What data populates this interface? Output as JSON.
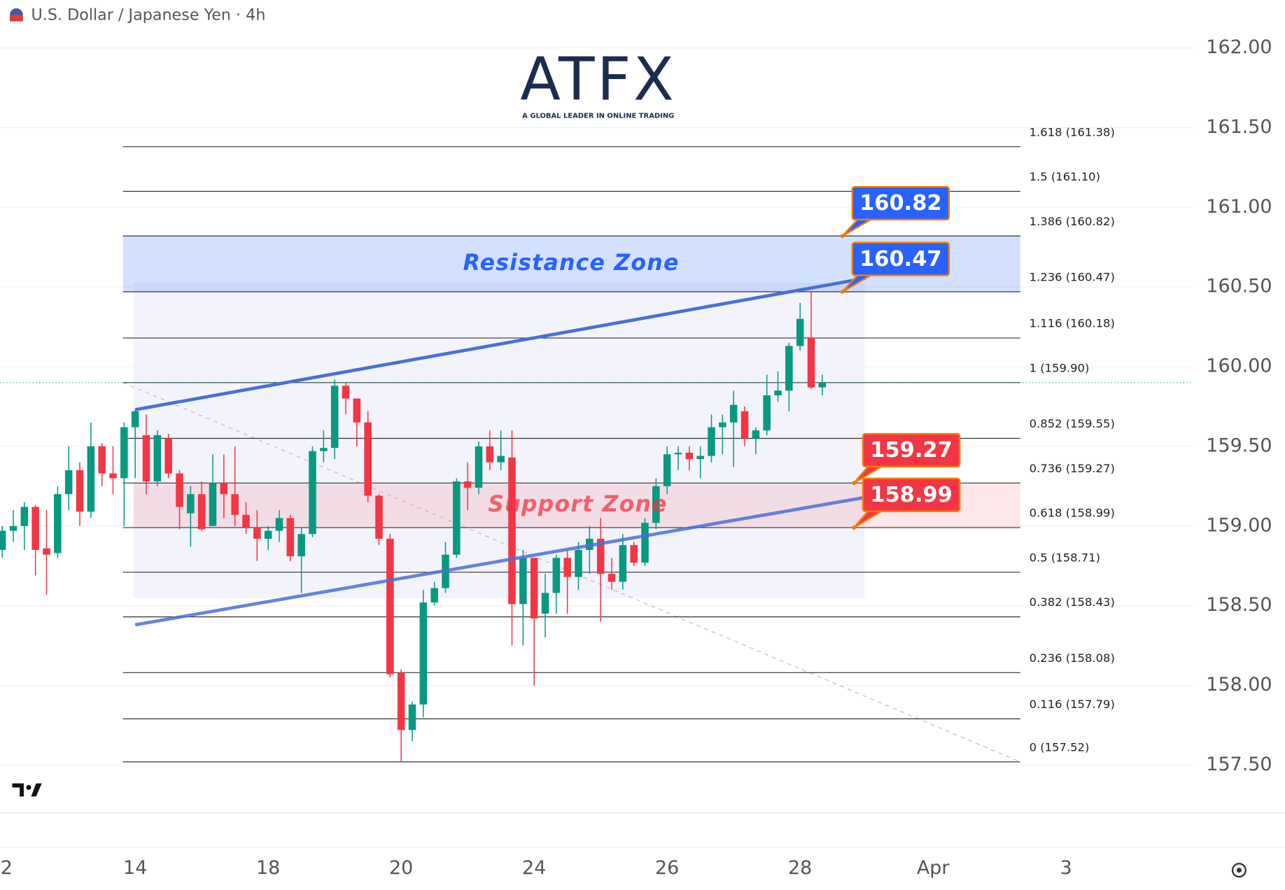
{
  "chart_data": {
    "type": "candlestick",
    "title": "U.S. Dollar / Japanese Yen",
    "interval": "4h",
    "brand": "ATFX",
    "brand_tagline": "A GLOBAL LEADER IN ONLINE TRADING",
    "up_color": "#089981",
    "down_color": "#f23645",
    "ylim": [
      157.2,
      162.3
    ],
    "yticks": [
      {
        "value": 157.5,
        "label": "157.50"
      },
      {
        "value": 158,
        "label": "158.00"
      },
      {
        "value": 158.5,
        "label": "158.50"
      },
      {
        "value": 159,
        "label": "159.00"
      },
      {
        "value": 159.5,
        "label": "159.50"
      },
      {
        "value": 160,
        "label": "160.00"
      },
      {
        "value": 160.5,
        "label": "160.50"
      },
      {
        "value": 161,
        "label": "161.00"
      },
      {
        "value": 161.5,
        "label": "161.50"
      },
      {
        "value": 162,
        "label": "162.00"
      }
    ],
    "xlim": [
      -0.2,
      107.4
    ],
    "xticks": [
      {
        "value": 0,
        "label": "2"
      },
      {
        "value": 12,
        "label": "14"
      },
      {
        "value": 24,
        "label": "18"
      },
      {
        "value": 36,
        "label": "20"
      },
      {
        "value": 48,
        "label": "24"
      },
      {
        "value": 60,
        "label": "26"
      },
      {
        "value": 72,
        "label": "28"
      },
      {
        "value": 84,
        "label": "Apr"
      },
      {
        "value": 96,
        "label": "3"
      }
    ],
    "candles": [
      [
        158.85,
        159.0,
        158.8,
        158.97
      ],
      [
        158.97,
        159.1,
        158.9,
        159.0
      ],
      [
        159.0,
        159.15,
        158.85,
        159.12
      ],
      [
        159.12,
        159.13,
        158.69,
        158.85
      ],
      [
        158.86,
        159.1,
        158.57,
        158.82
      ],
      [
        158.83,
        159.25,
        158.8,
        159.2
      ],
      [
        159.2,
        159.5,
        159.1,
        159.35
      ],
      [
        159.35,
        159.4,
        159.0,
        159.09
      ],
      [
        159.09,
        159.65,
        159.05,
        159.5
      ],
      [
        159.5,
        159.52,
        159.25,
        159.33
      ],
      [
        159.33,
        159.5,
        159.2,
        159.3
      ],
      [
        159.3,
        159.65,
        159.0,
        159.62
      ],
      [
        159.62,
        159.73,
        159.3,
        159.72
      ],
      [
        159.57,
        159.7,
        159.2,
        159.28
      ],
      [
        159.28,
        159.6,
        159.25,
        159.57
      ],
      [
        159.55,
        159.58,
        159.3,
        159.33
      ],
      [
        159.33,
        159.35,
        158.98,
        159.12
      ],
      [
        159.08,
        159.25,
        158.87,
        159.2
      ],
      [
        159.2,
        159.28,
        158.97,
        158.98
      ],
      [
        159.0,
        159.45,
        159.0,
        159.27
      ],
      [
        159.27,
        159.45,
        159.05,
        159.2
      ],
      [
        159.2,
        159.5,
        159.0,
        159.07
      ],
      [
        159.07,
        159.15,
        158.95,
        158.99
      ],
      [
        158.99,
        159.1,
        158.78,
        158.92
      ],
      [
        158.92,
        159.0,
        158.85,
        158.97
      ],
      [
        158.97,
        159.1,
        158.9,
        159.05
      ],
      [
        159.05,
        159.07,
        158.78,
        158.81
      ],
      [
        158.81,
        158.99,
        158.58,
        158.95
      ],
      [
        158.95,
        159.5,
        158.93,
        159.47
      ],
      [
        159.47,
        159.6,
        159.4,
        159.49
      ],
      [
        159.49,
        159.92,
        159.42,
        159.88
      ],
      [
        159.88,
        159.9,
        159.7,
        159.8
      ],
      [
        159.8,
        159.8,
        159.5,
        159.65
      ],
      [
        159.65,
        159.72,
        159.15,
        159.19
      ],
      [
        159.19,
        159.2,
        158.88,
        158.92
      ],
      [
        158.92,
        158.95,
        158.05,
        158.07
      ],
      [
        158.08,
        158.1,
        157.52,
        157.72
      ],
      [
        157.72,
        157.9,
        157.65,
        157.88
      ],
      [
        157.88,
        158.6,
        157.8,
        158.52
      ],
      [
        158.52,
        158.65,
        158.5,
        158.61
      ],
      [
        158.61,
        158.9,
        158.58,
        158.82
      ],
      [
        158.82,
        159.3,
        158.8,
        159.28
      ],
      [
        159.28,
        159.4,
        159.1,
        159.24
      ],
      [
        159.24,
        159.53,
        159.2,
        159.5
      ],
      [
        159.5,
        159.6,
        159.35,
        159.4
      ],
      [
        159.4,
        159.6,
        159.35,
        159.44
      ],
      [
        159.43,
        159.6,
        158.25,
        158.51
      ],
      [
        158.51,
        158.85,
        158.25,
        158.8
      ],
      [
        158.8,
        158.8,
        158.0,
        158.42
      ],
      [
        158.45,
        158.7,
        158.3,
        158.58
      ],
      [
        158.58,
        158.82,
        158.45,
        158.8
      ],
      [
        158.8,
        158.85,
        158.45,
        158.68
      ],
      [
        158.68,
        158.9,
        158.6,
        158.85
      ],
      [
        158.85,
        159.0,
        158.7,
        158.92
      ],
      [
        158.92,
        159.05,
        158.4,
        158.7
      ],
      [
        158.7,
        158.8,
        158.6,
        158.65
      ],
      [
        158.65,
        158.95,
        158.6,
        158.88
      ],
      [
        158.88,
        158.9,
        158.75,
        158.77
      ],
      [
        158.77,
        159.05,
        158.75,
        159.02
      ],
      [
        159.02,
        159.3,
        158.98,
        159.25
      ],
      [
        159.25,
        159.5,
        159.2,
        159.45
      ],
      [
        159.45,
        159.5,
        159.35,
        159.46
      ],
      [
        159.46,
        159.5,
        159.35,
        159.42
      ],
      [
        159.42,
        159.5,
        159.3,
        159.44
      ],
      [
        159.44,
        159.7,
        159.4,
        159.62
      ],
      [
        159.62,
        159.7,
        159.45,
        159.65
      ],
      [
        159.65,
        159.85,
        159.37,
        159.76
      ],
      [
        159.72,
        159.75,
        159.5,
        159.55
      ],
      [
        159.55,
        159.62,
        159.45,
        159.6
      ],
      [
        159.6,
        159.95,
        159.57,
        159.82
      ],
      [
        159.82,
        159.97,
        159.78,
        159.85
      ],
      [
        159.85,
        160.15,
        159.72,
        160.13
      ],
      [
        160.13,
        160.4,
        160.1,
        160.3
      ],
      [
        160.18,
        160.47,
        159.86,
        159.87
      ],
      [
        159.87,
        159.95,
        159.82,
        159.9
      ]
    ],
    "fib_levels": [
      {
        "value": 161.38,
        "label": "1.618 (161.38)"
      },
      {
        "value": 161.1,
        "label": "1.5 (161.10)"
      },
      {
        "value": 160.82,
        "label": "1.386 (160.82)"
      },
      {
        "value": 160.47,
        "label": "1.236 (160.47)"
      },
      {
        "value": 160.18,
        "label": "1.116 (160.18)"
      },
      {
        "value": 159.9,
        "label": "1 (159.90)"
      },
      {
        "value": 159.55,
        "label": "0.852 (159.55)"
      },
      {
        "value": 159.27,
        "label": "0.736 (159.27)"
      },
      {
        "value": 158.99,
        "label": "0.618 (158.99)"
      },
      {
        "value": 158.71,
        "label": "0.5 (158.71)"
      },
      {
        "value": 158.43,
        "label": "0.382 (158.43)"
      },
      {
        "value": 158.08,
        "label": "0.236 (158.08)"
      },
      {
        "value": 157.79,
        "label": "0.116 (157.79)"
      },
      {
        "value": 157.52,
        "label": "0 (157.52)"
      }
    ],
    "zones": [
      {
        "label": "Resistance Zone",
        "range": [
          160.47,
          160.82
        ],
        "color": "#2962ff"
      },
      {
        "label": "Support Zone",
        "range": [
          158.99,
          159.27
        ],
        "color": "#f23645"
      }
    ],
    "trend_lines": [
      {
        "from": [
          12,
          159.73
        ],
        "to": [
          77.9,
          160.555
        ],
        "color": "#4a6fd6"
      },
      {
        "from": [
          12,
          158.38
        ],
        "to": [
          77.9,
          159.18
        ],
        "color": "#4a6fd6"
      }
    ],
    "callouts": [
      {
        "value": 160.82,
        "color": "#2962ff"
      },
      {
        "value": 160.47,
        "color": "#2962ff"
      },
      {
        "value": 159.27,
        "color": "#f23645"
      },
      {
        "value": 158.99,
        "color": "#f23645"
      }
    ]
  }
}
